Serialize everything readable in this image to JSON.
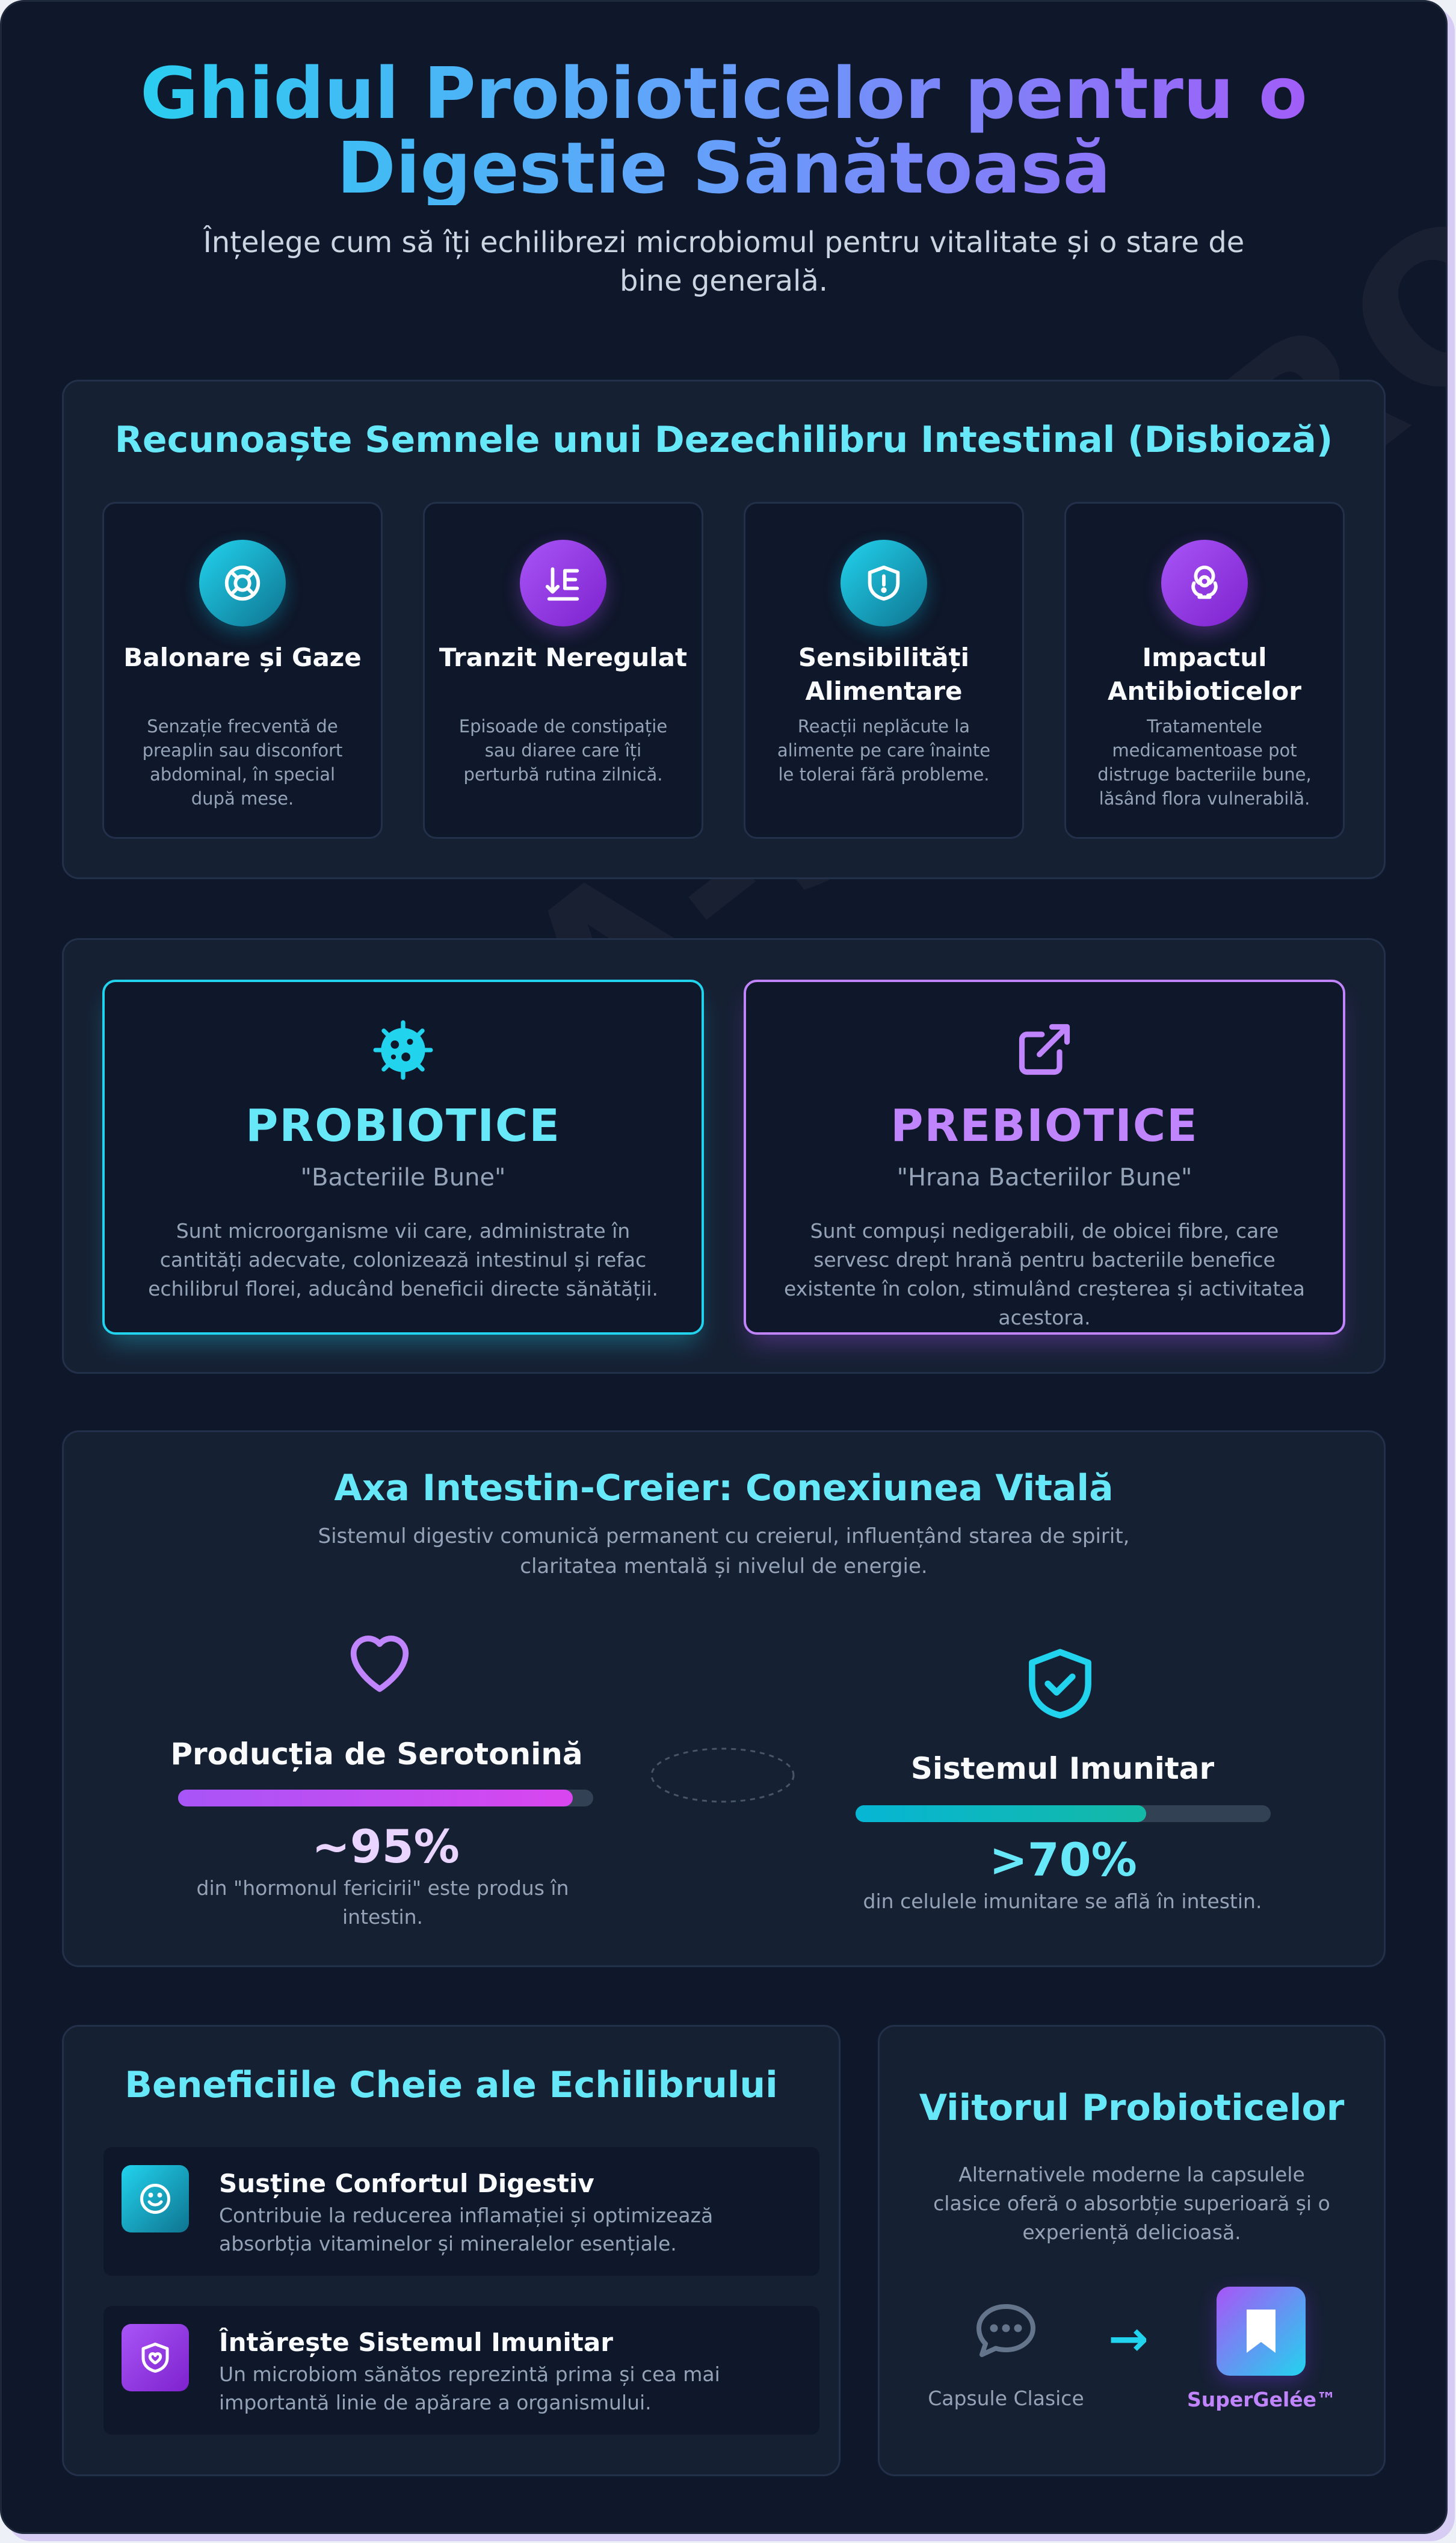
{
  "header": {
    "title": "Ghidul Probioticelor pentru o Digestie Sănătoasă",
    "subtitle": "Înțelege cum să îți echilibrezi microbiomul pentru vitalitate și o stare de bine generală."
  },
  "watermark": "VITA-SUPERO",
  "signs": {
    "title": "Recunoaște Semnele unui Dezechilibru Intestinal (Disbioză)",
    "cards": [
      {
        "title": "Balonare și Gaze",
        "desc": "Senzație frecventă de preaplin sau disconfort abdominal, în special după mese.",
        "icon": "lifebuoy-icon",
        "accent": "#22d3ee"
      },
      {
        "title": "Tranzit Neregulat",
        "desc": "Episoade de constipație sau diaree care îți perturbă rutina zilnică.",
        "icon": "sort-down-icon",
        "accent": "#a855f7"
      },
      {
        "title": "Sensibilități Alimentare",
        "desc": "Reacții neplăcute la alimente pe care înainte le tolerai fără probleme.",
        "icon": "shield-alert-icon",
        "accent": "#22d3ee"
      },
      {
        "title": "Impactul Antibioticelor",
        "desc": "Tratamentele medicamentoase pot distruge bacteriile bune, lăsând flora vulnerabilă.",
        "icon": "biohazard-icon",
        "accent": "#a855f7"
      }
    ]
  },
  "probiotics": {
    "name": "PROBIOTICE",
    "sub": "\"Bacteriile Bune\"",
    "desc": "Sunt microorganisme vii care, administrate în cantități adecvate, colonizează intestinul și refac echilibrul florei, aducând beneficii directe sănătății.",
    "icon": "bacteria-icon",
    "accent": "#22d3ee"
  },
  "prebiotics": {
    "name": "PREBIOTICE",
    "sub": "\"Hrana Bacteriilor Bune\"",
    "desc": "Sunt compuși nedigerabili, de obicei fibre, care servesc drept hrană pentru bacteriile benefice existente în colon, stimulând creșterea și activitatea acestora.",
    "icon": "external-link-icon",
    "accent": "#c084fc"
  },
  "axis": {
    "title": "Axa Intestin-Creier: Conexiunea Vitală",
    "desc": "Sistemul digestiv comunică permanent cu creierul, influențând starea de spirit, claritatea mentală și nivelul de energie.",
    "serotonin": {
      "label": "Producția de Serotonină",
      "value": "~95%",
      "fill": 0.95,
      "desc": "din \"hormonul fericirii\" este produs în intestin.",
      "icon": "heart-icon"
    },
    "immune": {
      "label": "Sistemul Imunitar",
      "value": ">70%",
      "fill": 0.7,
      "desc": "din celulele imunitare se află în intestin.",
      "icon": "shield-check-icon"
    }
  },
  "benefits": {
    "title": "Beneficiile Cheie ale Echilibrului",
    "items": [
      {
        "title": "Susține Confortul Digestiv",
        "desc": "Contribuie la reducerea inflamației și optimizează absorbția vitaminelor și mineralelor esențiale.",
        "icon": "smile-icon"
      },
      {
        "title": "Întărește Sistemul Imunitar",
        "desc": "Un microbiom sănătos reprezintă prima și cea mai importantă linie de apărare a organismului.",
        "icon": "shield-heart-icon"
      }
    ]
  },
  "future": {
    "title": "Viitorul Probioticelor",
    "desc": "Alternativele moderne la capsulele clasice oferă o absorbție superioară și o experiență delicioasă.",
    "from_label": "Capsule Clasice",
    "to_label": "SuperGelée™",
    "arrow": "→"
  },
  "colors": {
    "cyan": "#22d3ee",
    "purple": "#a855f7",
    "background": "#0f172a",
    "panel": "#162033"
  }
}
